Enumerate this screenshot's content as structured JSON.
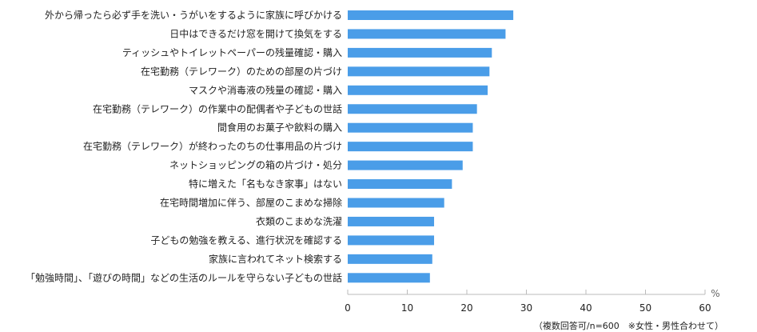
{
  "chart_data": {
    "type": "bar",
    "orientation": "horizontal",
    "categories": [
      "外から帰ったら必ず手を洗い・うがいをするように家族に呼びかける",
      "日中はできるだけ窓を開けて換気をする",
      "ティッシュやトイレットペーパーの残量確認・購入",
      "在宅勤務（テレワーク）のための部屋の片づけ",
      "マスクや消毒液の残量の確認・購入",
      "在宅勤務（テレワーク）の作業中の配偶者や子どもの世話",
      "間食用のお菓子や飲料の購入",
      "在宅勤務（テレワーク）が終わったのちの仕事用品の片づけ",
      "ネットショッピングの箱の片づけ・処分",
      "特に増えた「名もなき家事」はない",
      "在宅時間増加に伴う、部屋のこまめな掃除",
      "衣類のこまめな洗濯",
      "子どもの勉強を教える、進行状況を確認する",
      "家族に言われてネット検索する",
      "「勉強時間」、「遊びの時間」などの生活のルールを守らない子どもの世話"
    ],
    "values": [
      27.8,
      26.5,
      24.2,
      23.8,
      23.5,
      21.7,
      21.0,
      21.0,
      19.3,
      17.5,
      16.2,
      14.5,
      14.5,
      14.2,
      13.8
    ],
    "xlim": [
      0,
      60
    ],
    "xticks": [
      0,
      10,
      20,
      30,
      40,
      50,
      60
    ],
    "unit": "%",
    "bar_color": "#4a9de8",
    "grid": false,
    "note": "（複数回答可/n=600　※女性・男性合わせて）"
  }
}
